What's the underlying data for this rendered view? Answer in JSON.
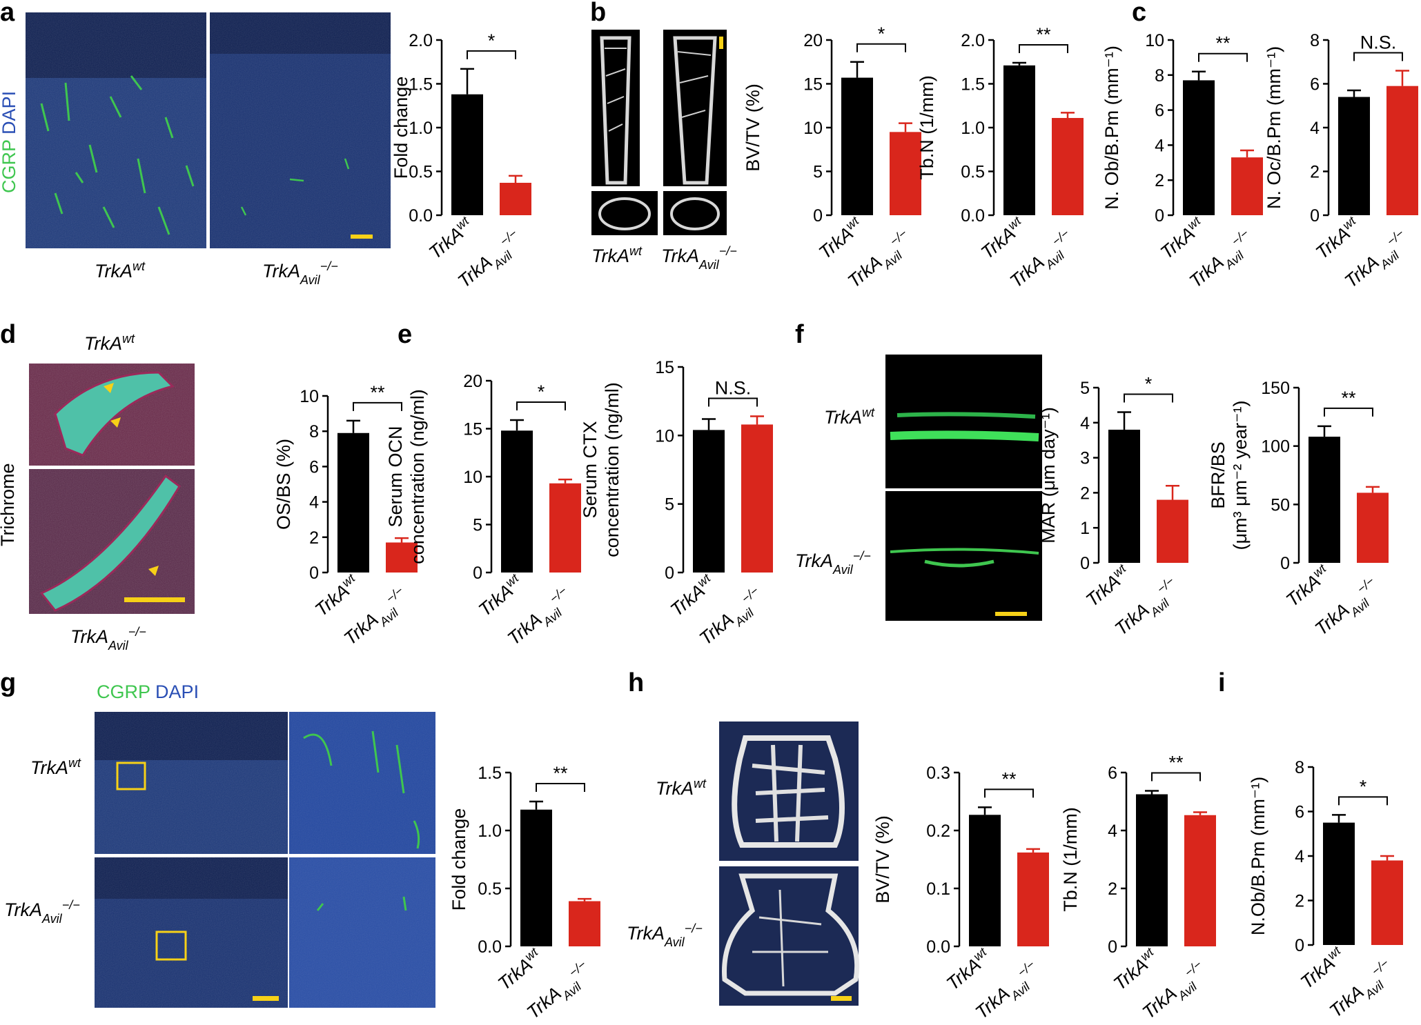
{
  "panel_labels": [
    "a",
    "b",
    "c",
    "d",
    "e",
    "f",
    "g",
    "h",
    "i"
  ],
  "group_labels": {
    "wt": {
      "base": "TrkA",
      "sup": "wt",
      "sub": ""
    },
    "ko": {
      "base": "TrkA",
      "sup": "−/−",
      "sub": "Avil"
    }
  },
  "image_labels": {
    "a_stain_green": "CGRP",
    "a_stain_blue": "DAPI",
    "d_stain": "Trichrome",
    "g_stain_green": "CGRP",
    "g_stain_blue": "DAPI"
  },
  "colors": {
    "wt": "#000000",
    "ko": "#d9261c",
    "green_stain": "#3fc64f",
    "blue_stain": "#2a4fb5",
    "scale_bar": "#f7d117"
  },
  "chart_data": [
    {
      "id": "a",
      "type": "bar",
      "categories": [
        "TrkA wt",
        "TrkA Avil −/−"
      ],
      "values": [
        1.38,
        0.37
      ],
      "errors": [
        0.29,
        0.08
      ],
      "ylabel": "Fold change",
      "ylim": [
        0,
        2.0
      ],
      "ticks": [
        "0.0",
        "0.5",
        "1.0",
        "1.5",
        "2.0"
      ],
      "significance": "*"
    },
    {
      "id": "b1",
      "type": "bar",
      "categories": [
        "TrkA wt",
        "TrkA Avil −/−"
      ],
      "values": [
        15.7,
        9.5
      ],
      "errors": [
        1.8,
        1.0
      ],
      "ylabel": "BV/TV (%)",
      "ylim": [
        0,
        20
      ],
      "ticks": [
        "0",
        "5",
        "10",
        "15",
        "20"
      ],
      "significance": "*"
    },
    {
      "id": "b2",
      "type": "bar",
      "categories": [
        "TrkA wt",
        "TrkA Avil −/−"
      ],
      "values": [
        1.71,
        1.11
      ],
      "errors": [
        0.03,
        0.06
      ],
      "ylabel": "Tb.N (1/mm)",
      "ylim": [
        0,
        2.0
      ],
      "ticks": [
        "0.0",
        "0.5",
        "1.0",
        "1.5",
        "2.0"
      ],
      "significance": "**"
    },
    {
      "id": "c1",
      "type": "bar",
      "categories": [
        "TrkA wt",
        "TrkA Avil −/−"
      ],
      "values": [
        7.7,
        3.3
      ],
      "errors": [
        0.5,
        0.4
      ],
      "ylabel": "N. Ob/B.Pm (mm⁻¹)",
      "ylim": [
        0,
        10
      ],
      "ticks": [
        "0",
        "2",
        "4",
        "6",
        "8",
        "10"
      ],
      "significance": "**"
    },
    {
      "id": "c2",
      "type": "bar",
      "categories": [
        "TrkA wt",
        "TrkA Avil −/−"
      ],
      "values": [
        5.4,
        5.9
      ],
      "errors": [
        0.3,
        0.7
      ],
      "ylabel": "N. Oc/B.Pm (mm⁻¹)",
      "ylim": [
        0,
        8
      ],
      "ticks": [
        "0",
        "2",
        "4",
        "6",
        "8"
      ],
      "significance": "N.S."
    },
    {
      "id": "d",
      "type": "bar",
      "categories": [
        "TrkA wt",
        "TrkA Avil −/−"
      ],
      "values": [
        7.9,
        1.7
      ],
      "errors": [
        0.7,
        0.25
      ],
      "ylabel": "OS/BS (%)",
      "ylim": [
        0,
        10
      ],
      "ticks": [
        "0",
        "2",
        "4",
        "6",
        "8",
        "10"
      ],
      "significance": "**"
    },
    {
      "id": "e1",
      "type": "bar",
      "categories": [
        "TrkA wt",
        "TrkA Avil −/−"
      ],
      "values": [
        14.8,
        9.3
      ],
      "errors": [
        1.1,
        0.4
      ],
      "ylabel": "Serum OCN",
      "ylabel2": "concentration (ng/ml)",
      "ylim": [
        0,
        20
      ],
      "ticks": [
        "0",
        "5",
        "10",
        "15",
        "20"
      ],
      "significance": "*"
    },
    {
      "id": "e2",
      "type": "bar",
      "categories": [
        "TrkA wt",
        "TrkA Avil −/−"
      ],
      "values": [
        10.4,
        10.8
      ],
      "errors": [
        0.8,
        0.6
      ],
      "ylabel": "Serum CTX",
      "ylabel2": "concentration (ng/ml)",
      "ylim": [
        0,
        15
      ],
      "ticks": [
        "0",
        "5",
        "10",
        "15"
      ],
      "significance": "N.S."
    },
    {
      "id": "f1",
      "type": "bar",
      "categories": [
        "TrkA wt",
        "TrkA Avil −/−"
      ],
      "values": [
        3.8,
        1.8
      ],
      "errors": [
        0.5,
        0.4
      ],
      "ylabel": "MAR (μm day⁻¹)",
      "ylim": [
        0,
        5
      ],
      "ticks": [
        "0",
        "1",
        "2",
        "3",
        "4",
        "5"
      ],
      "significance": "*"
    },
    {
      "id": "f2",
      "type": "bar",
      "categories": [
        "TrkA wt",
        "TrkA Avil −/−"
      ],
      "values": [
        108,
        60
      ],
      "errors": [
        9,
        5
      ],
      "ylabel": "BFR/BS",
      "ylabel2": "(μm³ μm⁻² year⁻¹)",
      "ylim": [
        0,
        150
      ],
      "ticks": [
        "0",
        "50",
        "100",
        "150"
      ],
      "significance": "**"
    },
    {
      "id": "g",
      "type": "bar",
      "categories": [
        "TrkA wt",
        "TrkA Avil −/−"
      ],
      "values": [
        1.18,
        0.39
      ],
      "errors": [
        0.07,
        0.02
      ],
      "ylabel": "Fold change",
      "ylim": [
        0,
        1.5
      ],
      "ticks": [
        "0.0",
        "0.5",
        "1.0",
        "1.5"
      ],
      "significance": "**"
    },
    {
      "id": "h1",
      "type": "bar",
      "categories": [
        "TrkA wt",
        "TrkA Avil −/−"
      ],
      "values": [
        0.227,
        0.162
      ],
      "errors": [
        0.013,
        0.006
      ],
      "ylabel": "BV/TV (%)",
      "ylim": [
        0,
        0.3
      ],
      "ticks": [
        "0.0",
        "0.1",
        "0.2",
        "0.3"
      ],
      "significance": "**"
    },
    {
      "id": "h2",
      "type": "bar",
      "categories": [
        "TrkA wt",
        "TrkA Avil −/−"
      ],
      "values": [
        5.25,
        4.53
      ],
      "errors": [
        0.12,
        0.1
      ],
      "ylabel": "Tb.N (1/mm)",
      "ylim": [
        0,
        6
      ],
      "ticks": [
        "0",
        "2",
        "4",
        "6"
      ],
      "significance": "**"
    },
    {
      "id": "i",
      "type": "bar",
      "categories": [
        "TrkA wt",
        "TrkA Avil −/−"
      ],
      "values": [
        5.5,
        3.8
      ],
      "errors": [
        0.35,
        0.2
      ],
      "ylabel": "N.Ob/B.Pm (mm⁻¹)",
      "ylim": [
        0,
        8
      ],
      "ticks": [
        "0",
        "2",
        "4",
        "6",
        "8"
      ],
      "significance": "*"
    }
  ]
}
